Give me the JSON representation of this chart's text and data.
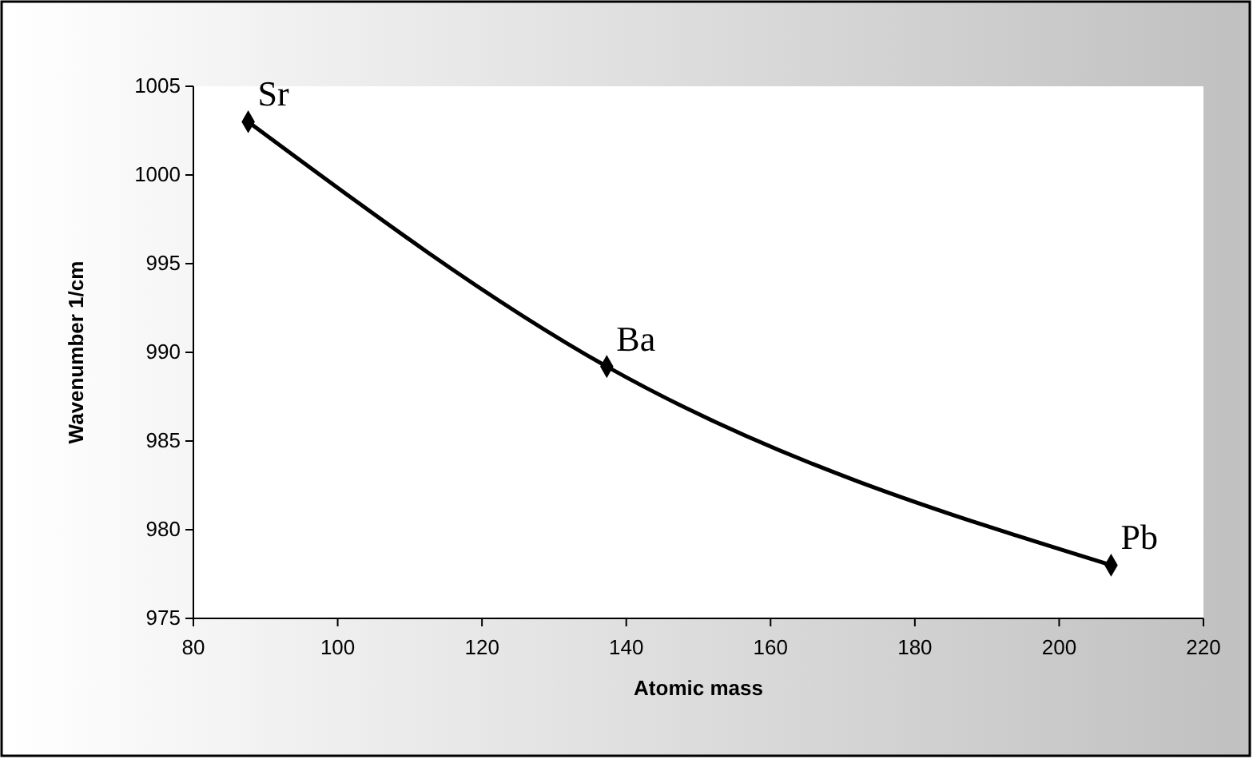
{
  "chart_data": {
    "type": "line",
    "xlabel": "Atomic mass",
    "ylabel": "Wavenumber 1/cm",
    "x": [
      87.6,
      137.3,
      207.2
    ],
    "series": [
      {
        "color": "#000000",
        "values": [
          1003,
          989.2,
          978
        ]
      }
    ],
    "xlim": [
      80,
      220
    ],
    "xticks": [
      80,
      100,
      120,
      140,
      160,
      180,
      200,
      220
    ],
    "ylim": [
      975,
      1005
    ],
    "yticks": [
      975,
      980,
      985,
      990,
      995,
      1000,
      1005
    ],
    "marker": "diamond",
    "grid": false,
    "annotations": [
      {
        "text": "Sr",
        "x": 87.6,
        "y": 1003
      },
      {
        "text": "Ba",
        "x": 137.3,
        "y": 989.2
      },
      {
        "text": "Pb",
        "x": 207.2,
        "y": 978
      }
    ]
  }
}
